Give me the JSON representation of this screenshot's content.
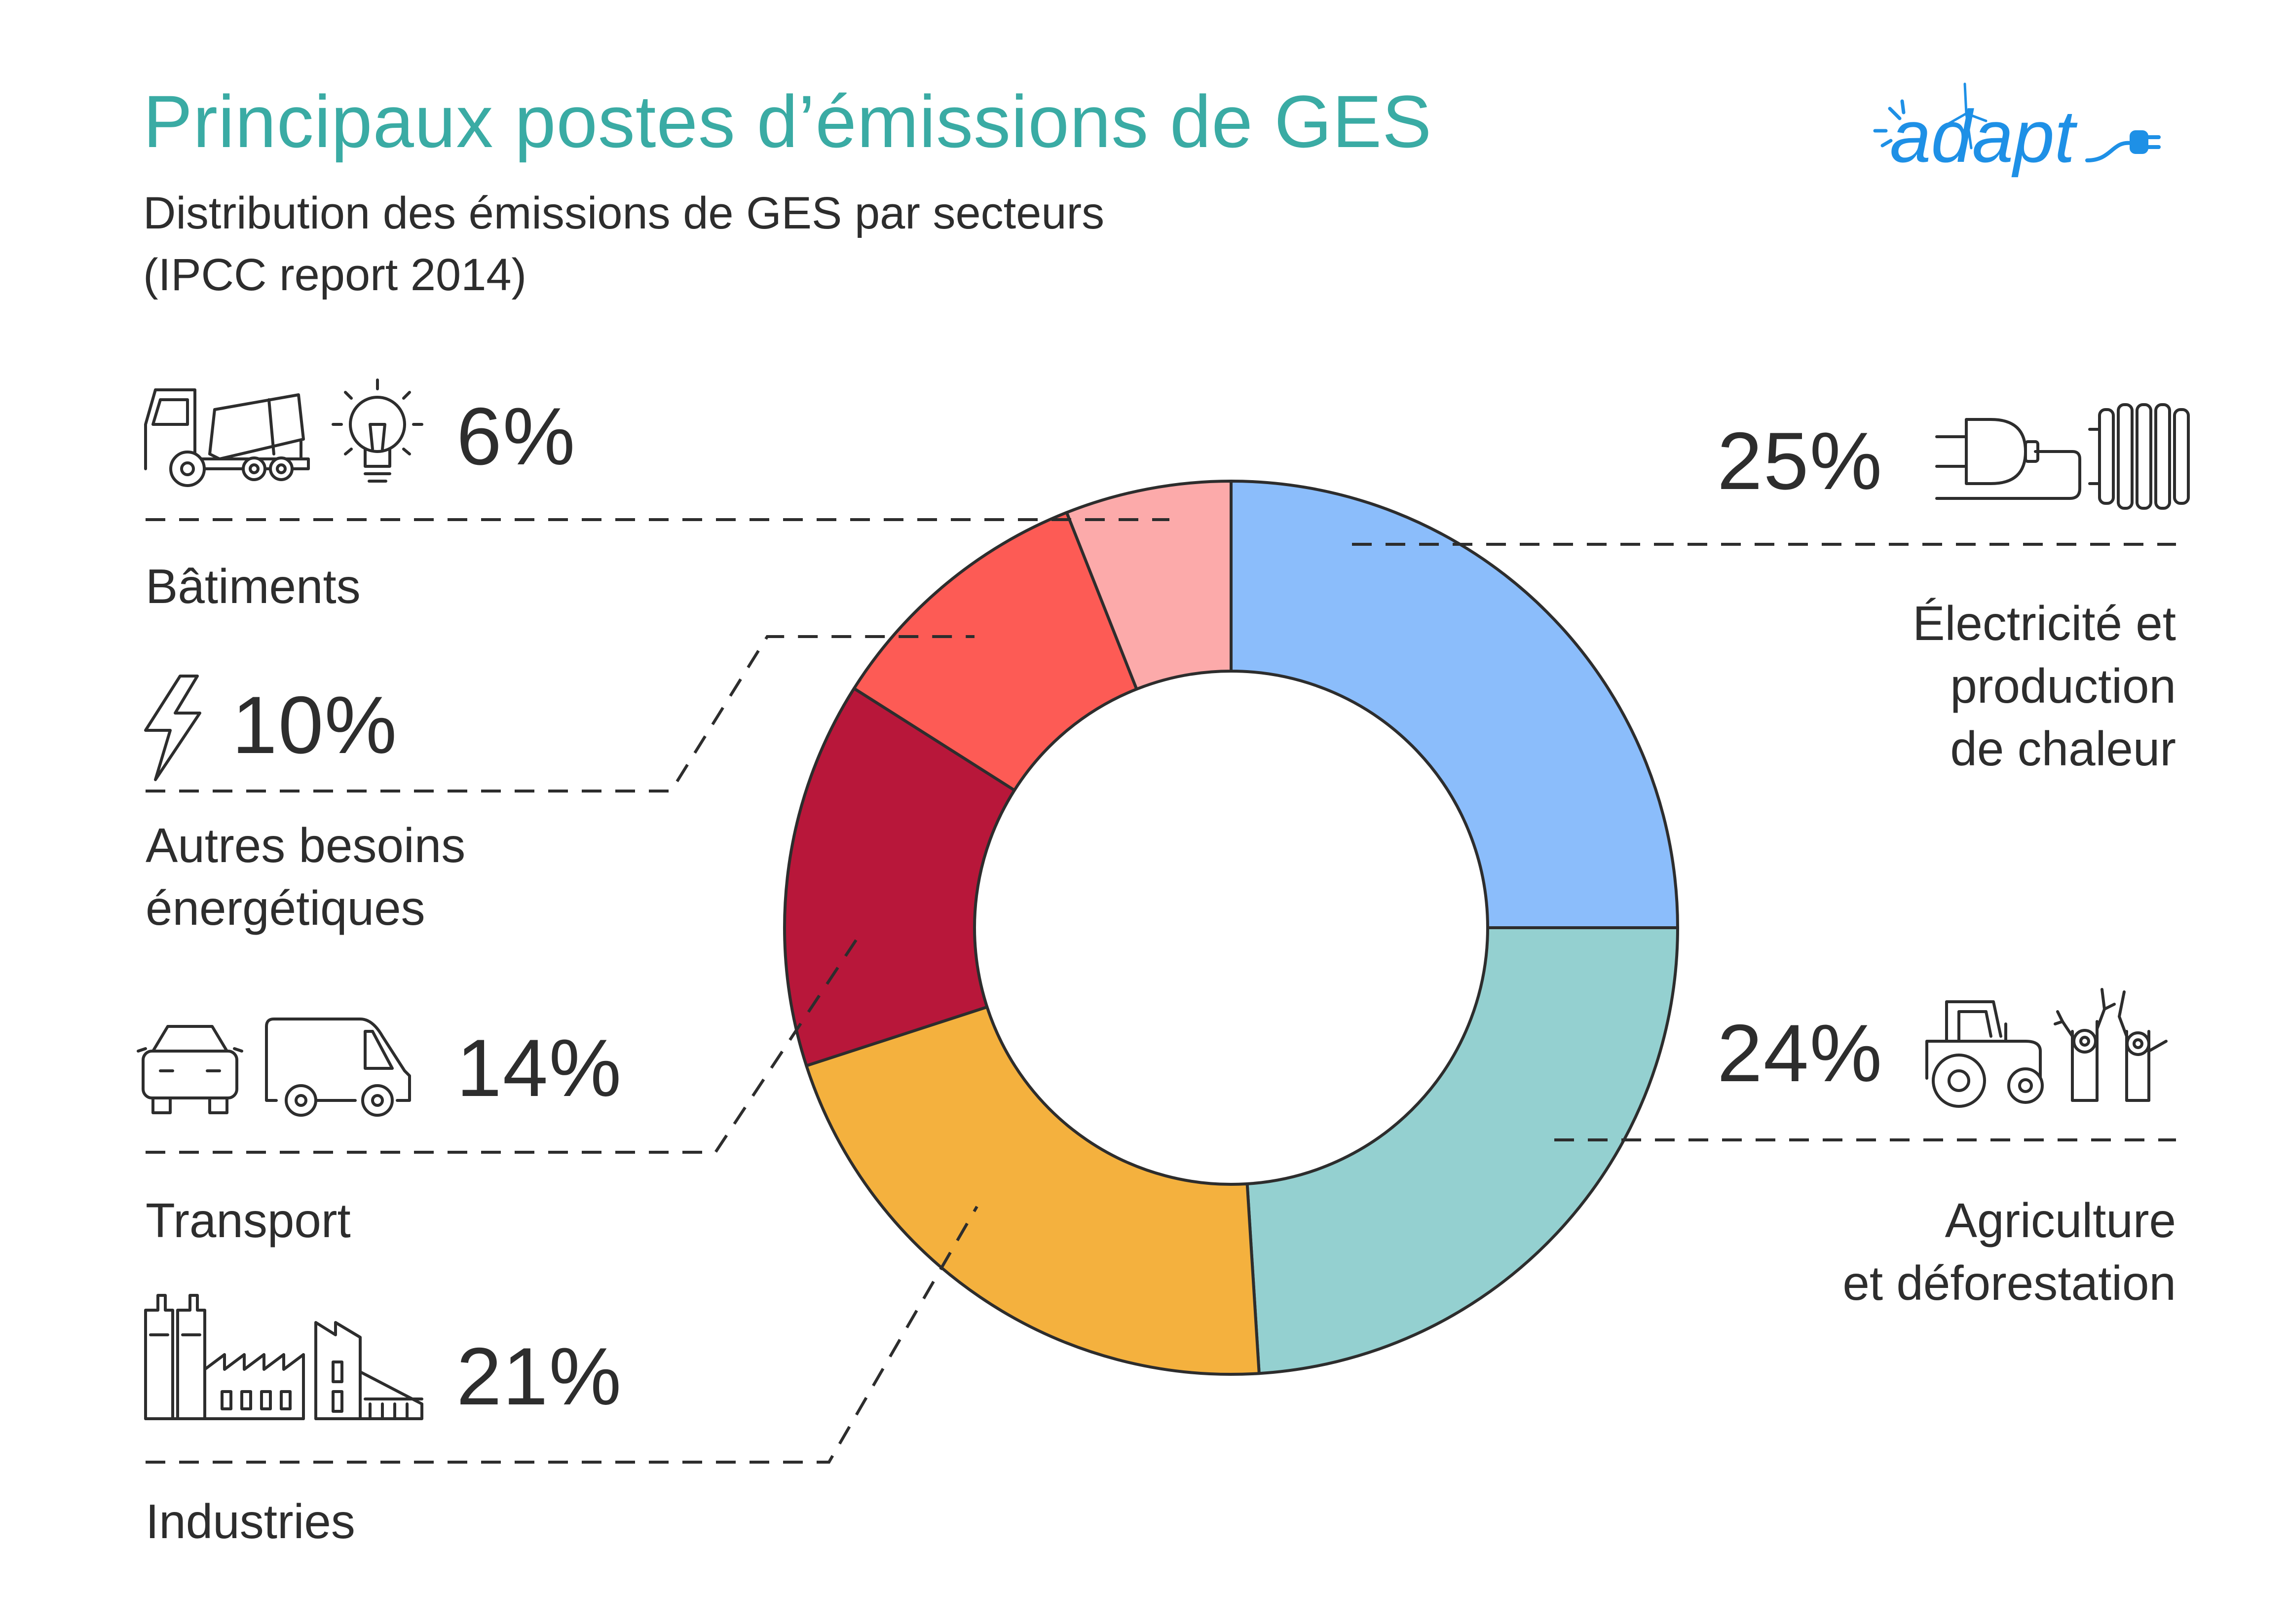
{
  "title": "Principaux postes d’émissions de GES",
  "subtitle_line1": "Distribution des émissions de GES par secteurs",
  "subtitle_line2": "(IPCC report 2014)",
  "logo_text": "adapt",
  "colors": {
    "title": "#3aaba4",
    "text": "#2d2d2d",
    "logo": "#1e90e6"
  },
  "chart_data": {
    "type": "pie",
    "donut": true,
    "title": "Principaux postes d’émissions de GES",
    "unit": "%",
    "slices": [
      {
        "label": "Électricité et production de chaleur",
        "value": 25,
        "display": "25%",
        "color": "#8bbdfb"
      },
      {
        "label": "Agriculture et déforestation",
        "value": 24,
        "display": "24%",
        "color": "#94d0d0"
      },
      {
        "label": "Industries",
        "value": 21,
        "display": "21%",
        "color": "#f4b13e"
      },
      {
        "label": "Transport",
        "value": 14,
        "display": "14%",
        "color": "#b8173a"
      },
      {
        "label": "Autres besoins énergétiques",
        "value": 10,
        "display": "10%",
        "color": "#fd5b55"
      },
      {
        "label": "Bâtiments",
        "value": 6,
        "display": "6%",
        "color": "#fcaaaa"
      }
    ]
  },
  "callouts": {
    "batiments": {
      "pct": "6%",
      "label": "Bâtiments",
      "icons": [
        "cement-truck-icon",
        "light-bulb-icon"
      ]
    },
    "autres": {
      "pct": "10%",
      "label_line1": "Autres besoins",
      "label_line2": "énergétiques",
      "icons": [
        "lightning-icon"
      ]
    },
    "transport": {
      "pct": "14%",
      "label": "Transport",
      "icons": [
        "car-icon",
        "van-icon"
      ]
    },
    "industries": {
      "pct": "21%",
      "label": "Industries",
      "icons": [
        "factory-icon",
        "industrial-building-icon"
      ]
    },
    "electricite": {
      "pct": "25%",
      "label_line1": "Électricité et",
      "label_line2": "production",
      "label_line3": "de chaleur",
      "icons": [
        "plug-icon",
        "radiator-icon"
      ]
    },
    "agriculture": {
      "pct": "24%",
      "label_line1": "Agriculture",
      "label_line2": "et déforestation",
      "icons": [
        "tractor-icon",
        "tree-stumps-icon"
      ]
    }
  }
}
